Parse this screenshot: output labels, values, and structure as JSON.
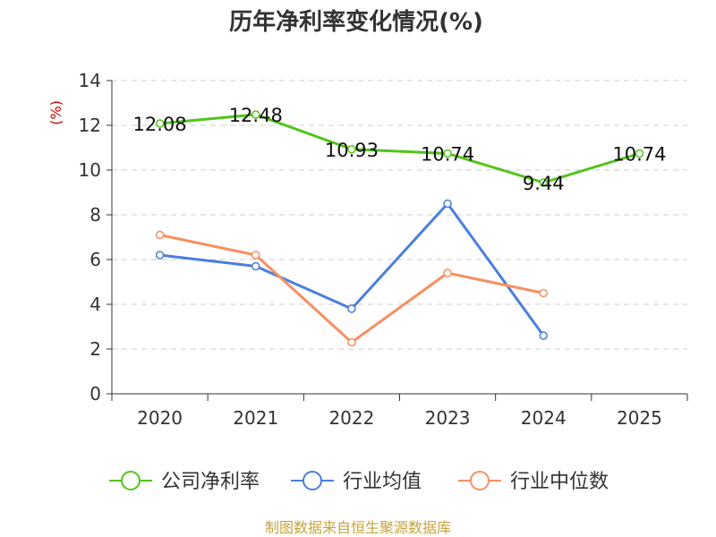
{
  "chart_data": {
    "type": "line",
    "title": "历年净利率变化情况(%)",
    "ylabel": "(%)",
    "xlabel": "",
    "ylim": [
      0,
      14
    ],
    "yticks": [
      0,
      2,
      4,
      6,
      8,
      10,
      12,
      14
    ],
    "categories": [
      "2020",
      "2021",
      "2022",
      "2023",
      "2024",
      "2025"
    ],
    "grid": true,
    "legend_position": "bottom",
    "series": [
      {
        "name": "公司净利率",
        "color": "#52c41a",
        "show_labels": true,
        "values": [
          12.08,
          12.48,
          10.93,
          10.74,
          9.44,
          10.74
        ]
      },
      {
        "name": "行业均值",
        "color": "#4a7fdc",
        "show_labels": false,
        "values": [
          6.2,
          5.7,
          3.8,
          8.5,
          2.6,
          null
        ]
      },
      {
        "name": "行业中位数",
        "color": "#f79060",
        "show_labels": false,
        "values": [
          7.1,
          6.2,
          2.3,
          5.4,
          4.5,
          null
        ]
      }
    ]
  },
  "source": "制图数据来自恒生聚源数据库",
  "colors": {
    "title": "#333333",
    "ylabel": "#cc0000",
    "source": "#c8a33a",
    "grid": "#cccccc",
    "axis": "#333333"
  }
}
